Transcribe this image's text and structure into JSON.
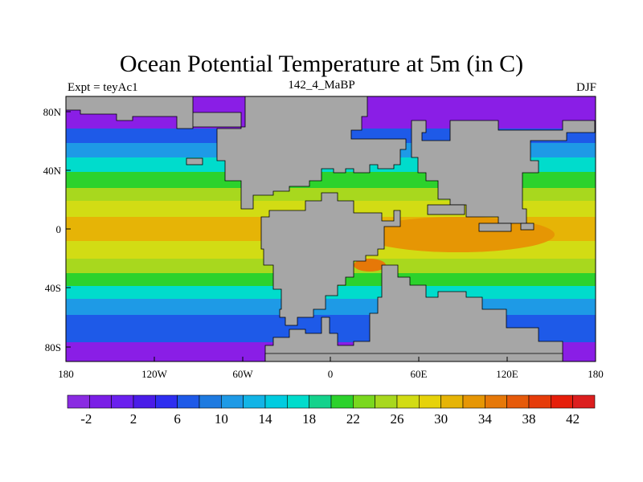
{
  "title": "Ocean Potential Temperature at 5m (in C)",
  "left_label": "Expt = teyAc1",
  "center_label": "142_4_MaBP",
  "right_label": "DJF",
  "lat_ticks": [
    "80N",
    "40N",
    "0",
    "40S",
    "80S"
  ],
  "lon_ticks": [
    "180",
    "120W",
    "60W",
    "0",
    "60E",
    "120E",
    "180"
  ],
  "colorbar": {
    "labels": [
      "-2",
      "2",
      "6",
      "10",
      "14",
      "18",
      "22",
      "26",
      "30",
      "34",
      "38",
      "42"
    ],
    "colors": [
      "#8a2be2",
      "#7a1ee6",
      "#6a20ee",
      "#4a1ce8",
      "#2e2ef0",
      "#1e5ae8",
      "#1e7ae0",
      "#1e9ae6",
      "#12b4e6",
      "#00cce0",
      "#00dccc",
      "#14d28c",
      "#2cd22c",
      "#7ad81e",
      "#a8d81e",
      "#d2dc14",
      "#e6d20a",
      "#e6b406",
      "#e69604",
      "#e67808",
      "#e65a0a",
      "#e63c0a",
      "#e61e0a",
      "#dc1e1e"
    ]
  },
  "map_colors": {
    "land": "#a6a6a6",
    "polar": "#8a1ee6",
    "cold": "#1e5ae8",
    "cool": "#1e9ae6",
    "mild": "#00dccc",
    "temperate": "#2cd22c",
    "warm": "#a8d81e",
    "tropical": "#d2dc14",
    "hot": "#e6b406",
    "hotter": "#e69604",
    "hottest": "#e67808"
  }
}
